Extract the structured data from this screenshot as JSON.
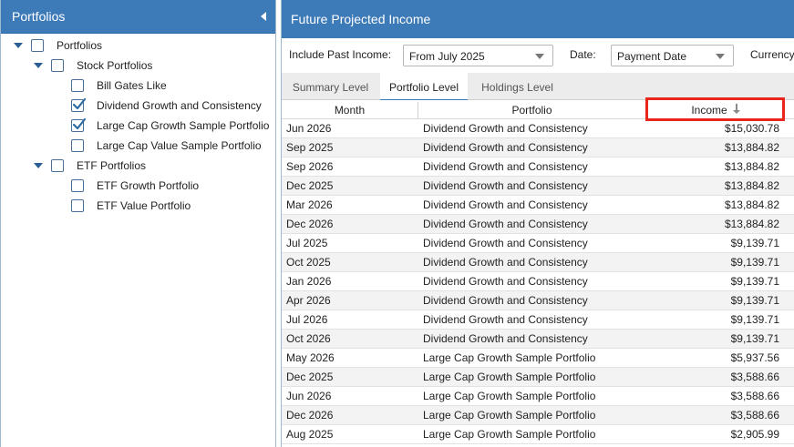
{
  "left_panel": {
    "title": "Portfolios",
    "tree": [
      {
        "label": "Portfolios",
        "checked": false,
        "expandable": true
      },
      {
        "label": "Stock Portfolios",
        "checked": false,
        "expandable": true
      },
      {
        "label": "Bill Gates Like",
        "checked": false,
        "expandable": false
      },
      {
        "label": "Dividend Growth and Consistency",
        "checked": true,
        "expandable": false
      },
      {
        "label": "Large Cap Growth Sample Portfolio",
        "checked": true,
        "expandable": false
      },
      {
        "label": "Large Cap Value Sample Portfolio",
        "checked": false,
        "expandable": false
      },
      {
        "label": "ETF Portfolios",
        "checked": false,
        "expandable": true
      },
      {
        "label": "ETF Growth Portfolio",
        "checked": false,
        "expandable": false
      },
      {
        "label": "ETF Value Portfolio",
        "checked": false,
        "expandable": false
      }
    ]
  },
  "main": {
    "title": "Future Projected Income",
    "filters": {
      "include_past_label": "Include Past Income:",
      "include_past_value": "From July 2025",
      "date_label": "Date:",
      "date_value": "Payment Date",
      "currency_label": "Currency"
    },
    "tabs": [
      {
        "label": "Summary Level",
        "active": false
      },
      {
        "label": "Portfolio Level",
        "active": true
      },
      {
        "label": "Holdings Level",
        "active": false
      }
    ],
    "columns": {
      "month": "Month",
      "portfolio": "Portfolio",
      "income": "Income"
    },
    "rows": [
      {
        "month": "Jun 2026",
        "portfolio": "Dividend Growth and Consistency",
        "income": "$15,030.78"
      },
      {
        "month": "Sep 2025",
        "portfolio": "Dividend Growth and Consistency",
        "income": "$13,884.82"
      },
      {
        "month": "Sep 2026",
        "portfolio": "Dividend Growth and Consistency",
        "income": "$13,884.82"
      },
      {
        "month": "Dec 2025",
        "portfolio": "Dividend Growth and Consistency",
        "income": "$13,884.82"
      },
      {
        "month": "Mar 2026",
        "portfolio": "Dividend Growth and Consistency",
        "income": "$13,884.82"
      },
      {
        "month": "Dec 2026",
        "portfolio": "Dividend Growth and Consistency",
        "income": "$13,884.82"
      },
      {
        "month": "Jul 2025",
        "portfolio": "Dividend Growth and Consistency",
        "income": "$9,139.71"
      },
      {
        "month": "Oct 2025",
        "portfolio": "Dividend Growth and Consistency",
        "income": "$9,139.71"
      },
      {
        "month": "Jan 2026",
        "portfolio": "Dividend Growth and Consistency",
        "income": "$9,139.71"
      },
      {
        "month": "Apr 2026",
        "portfolio": "Dividend Growth and Consistency",
        "income": "$9,139.71"
      },
      {
        "month": "Jul 2026",
        "portfolio": "Dividend Growth and Consistency",
        "income": "$9,139.71"
      },
      {
        "month": "Oct 2026",
        "portfolio": "Dividend Growth and Consistency",
        "income": "$9,139.71"
      },
      {
        "month": "May 2026",
        "portfolio": "Large Cap Growth Sample Portfolio",
        "income": "$5,937.56"
      },
      {
        "month": "Dec 2025",
        "portfolio": "Large Cap Growth Sample Portfolio",
        "income": "$3,588.66"
      },
      {
        "month": "Jun 2026",
        "portfolio": "Large Cap Growth Sample Portfolio",
        "income": "$3,588.66"
      },
      {
        "month": "Dec 2026",
        "portfolio": "Large Cap Growth Sample Portfolio",
        "income": "$3,588.66"
      },
      {
        "month": "Aug 2025",
        "portfolio": "Large Cap Growth Sample Portfolio",
        "income": "$2,905.99"
      }
    ],
    "highlight_color": "#e8261a"
  }
}
